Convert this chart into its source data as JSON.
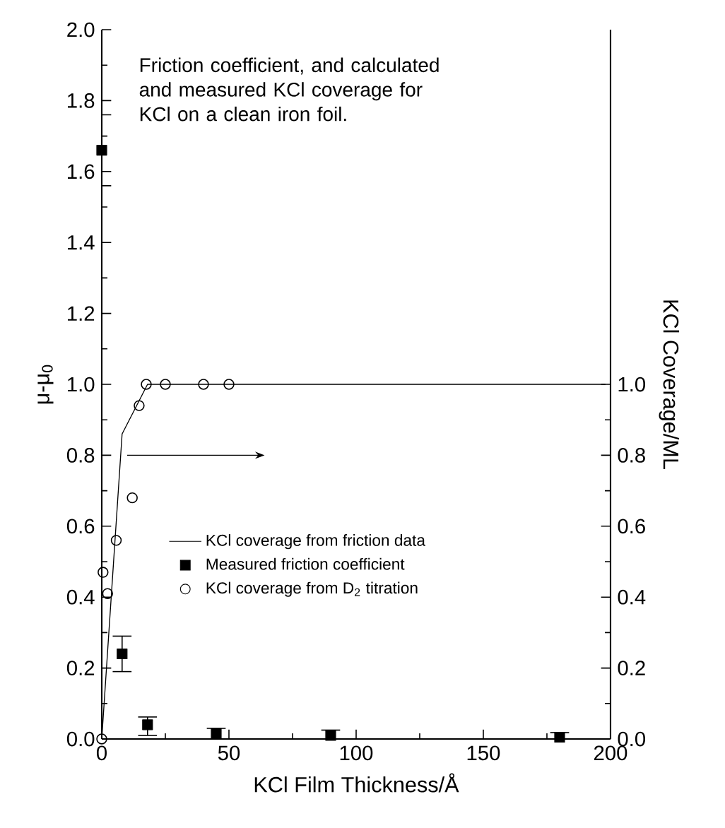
{
  "chart_data": {
    "type": "scatter",
    "title": "Friction coefficient, and calculated and measured KCl coverage for KCl on a clean iron foil.",
    "xlabel": "KCl Film Thickness/Å",
    "ylabel": "μ-μ$_{0}$",
    "y2label": "KCl Coverage/ML",
    "xlim": [
      0,
      200
    ],
    "xticks": [
      0,
      50,
      100,
      150,
      200
    ],
    "ylim": [
      0,
      2
    ],
    "yticks": [
      {
        "value": 0,
        "label": "0.0"
      },
      {
        "value": 0.2,
        "label": "0.2"
      },
      {
        "value": 0.4,
        "label": "0.4"
      },
      {
        "value": 0.6,
        "label": "0.6"
      },
      {
        "value": 0.8,
        "label": "0.8"
      },
      {
        "value": 1,
        "label": "1.0"
      },
      {
        "value": 1.2,
        "label": "1.2"
      },
      {
        "value": 1.4,
        "label": "1.4"
      },
      {
        "value": 1.6,
        "label": "1.6"
      },
      {
        "value": 1.8,
        "label": "1.8"
      },
      {
        "value": 2,
        "label": "2.0"
      }
    ],
    "y2lim": [
      0,
      2
    ],
    "y2ticks": [
      {
        "value": 0,
        "label": "0.0"
      },
      {
        "value": 0.2,
        "label": "0.2"
      },
      {
        "value": 0.4,
        "label": "0.4"
      },
      {
        "value": 0.6,
        "label": "0.6"
      },
      {
        "value": 0.8,
        "label": "0.8"
      },
      {
        "value": 1,
        "label": "1.0"
      }
    ],
    "legend": "bottom",
    "grid": false,
    "series": [
      {
        "name": "KCl coverage from friction data",
        "type": "line",
        "axis": "y2",
        "color": "#000000",
        "marker": "none",
        "x": [
          0,
          8,
          18,
          198
        ],
        "values": [
          0,
          0.86,
          1.0,
          1.0
        ]
      },
      {
        "name": "Measured friction coefficient",
        "color": "#000000",
        "marker": "square",
        "x": [
          0,
          8,
          18,
          45,
          90,
          180
        ],
        "values": [
          1.66,
          0.24,
          0.04,
          0.015,
          0.01,
          0.005
        ],
        "errors": [
          0.1,
          0.05,
          [
            0.01,
            0.062
          ],
          0.015,
          0.015,
          [
            0,
            0.018
          ]
        ]
      },
      {
        "name": "KCl coverage from D$_{2}$ titration",
        "axis": "y2",
        "color": "#000000",
        "marker": "circle",
        "x": [
          0,
          0.5,
          2.3,
          5.7,
          12,
          14.7,
          17.5,
          25,
          40,
          50
        ],
        "values": [
          0,
          0.47,
          0.41,
          0.56,
          0.68,
          0.94,
          1.0,
          1.0,
          1.0,
          1.0
        ]
      }
    ]
  }
}
